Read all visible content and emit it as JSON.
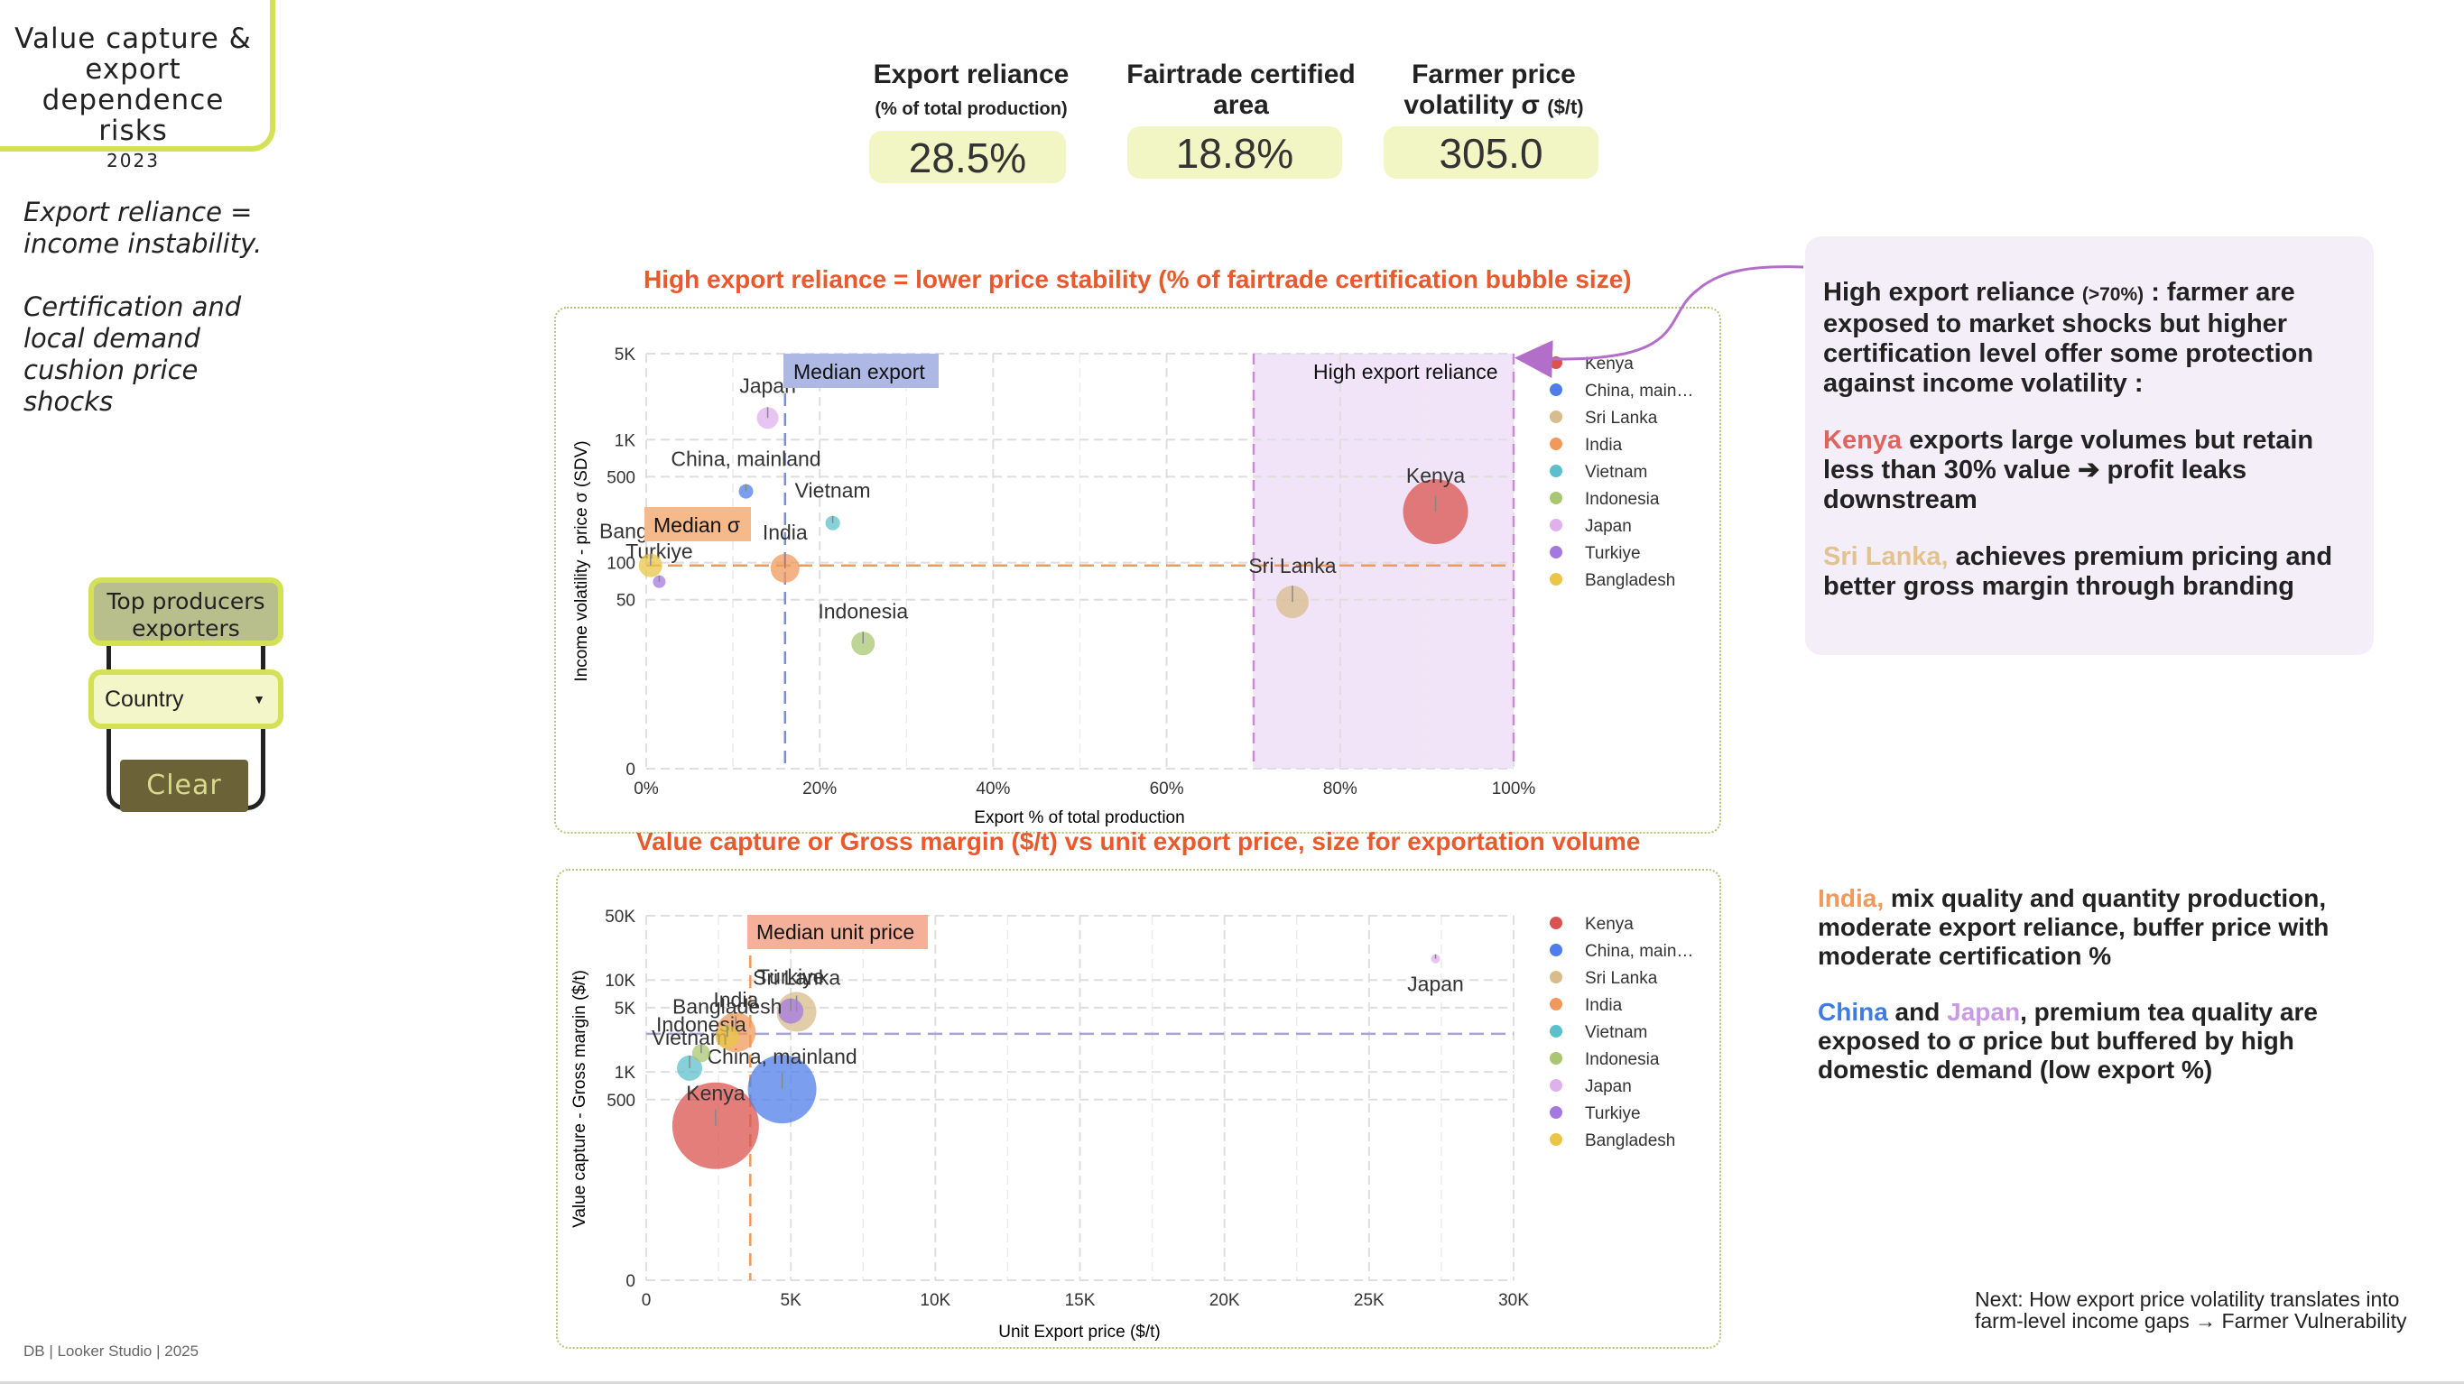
{
  "sidebar": {
    "title": "Value capture & export dependence risks",
    "year": "2023",
    "tagline1": "Export reliance = income instability.",
    "tagline2": "Certification and local demand cushion price shocks",
    "control_label": "Top producers exporters",
    "select_value": "Country",
    "clear_label": "Clear"
  },
  "kpis": [
    {
      "label": "Export reliance",
      "sublabel": "(% of total production)",
      "value": "28.5%"
    },
    {
      "label": "Fairtrade certified area",
      "value": "18.8%"
    },
    {
      "label": "Farmer price volatility σ",
      "unit": "($/t)",
      "value": "305.0"
    }
  ],
  "notes": {
    "box1_intro": "High export reliance",
    "box1_intro_small": "(>70%)",
    "box1_intro_rest": " : farmer are exposed to market shocks but higher certification level offer some protection against income volatility :",
    "kenya_name": "Kenya",
    "kenya_text": " exports large volumes but retain less than 30% value ➔ profit leaks downstream",
    "srilanka_name": "Sri Lanka,",
    "srilanka_text": " achieves premium pricing and better gross margin through branding",
    "india_name": "India,",
    "india_text": " mix quality and quantity production, moderate export reliance, buffer price with moderate certification %",
    "china_name": "China",
    "and": " and ",
    "japan_name": "Japan",
    "china_japan_text": ", premium tea quality are exposed to σ price but buffered by high domestic demand (low export %)",
    "next_line1": "Next: How export price volatility translates into",
    "next_line2": "farm-level income gaps → Farmer Vulnerability",
    "footer": "DB  |  Looker Studio  |  2025"
  },
  "colors": {
    "Kenya": "#d9534f",
    "China, mainland": "#4f7ee8",
    "Sri Lanka": "#d8bc8c",
    "India": "#f0995c",
    "Vietnam": "#5cc0cc",
    "Indonesia": "#a9c773",
    "Japan": "#dfb0ec",
    "Turkiye": "#a478e0",
    "Bangladesh": "#eac548",
    "title_orange": "#e8592d",
    "accent_lime": "#d4e157",
    "srilanka_text": "#e2c28f",
    "india_text": "#f0995c",
    "china_text": "#3f7be0",
    "japan_text": "#c99be2"
  },
  "chart_data": [
    {
      "type": "scatter",
      "title": "High export reliance = lower price stability (% of fairtrade certification bubble size)",
      "xlabel": "Export % of total production",
      "ylabel": "Income volatility - price σ (SDV)",
      "xlim": [
        0,
        100
      ],
      "ylim": [
        0,
        5000
      ],
      "y_scale": "log",
      "x_ticks": [
        "0%",
        "20%",
        "40%",
        "60%",
        "80%",
        "100%"
      ],
      "y_ticks": [
        "0",
        "50",
        "100",
        "500",
        "1K",
        "5K"
      ],
      "grid": true,
      "legend_position": "right",
      "legend": [
        "Kenya",
        "China, main…",
        "Sri Lanka",
        "India",
        "Vietnam",
        "Indonesia",
        "Japan",
        "Turkiye",
        "Bangladesh"
      ],
      "reference_lines": [
        {
          "label": "Median export",
          "axis": "x",
          "value": 16
        },
        {
          "label": "Median σ",
          "axis": "y",
          "value": 95
        }
      ],
      "band": {
        "label": "High export reliance",
        "from": 70,
        "to": 100
      },
      "points": [
        {
          "name": "Kenya",
          "label": "Kenya",
          "x": 91,
          "y": 260,
          "size": 36
        },
        {
          "name": "China, mainland",
          "label": "China, mainland",
          "x": 11.5,
          "y": 380,
          "size": 8
        },
        {
          "name": "Sri Lanka",
          "label": "Sri Lanka",
          "x": 74.5,
          "y": 48,
          "size": 18
        },
        {
          "name": "India",
          "label": "India",
          "x": 16,
          "y": 90,
          "size": 16
        },
        {
          "name": "Vietnam",
          "label": "Vietnam",
          "x": 21.5,
          "y": 210,
          "size": 8
        },
        {
          "name": "Indonesia",
          "label": "Indonesia",
          "x": 25,
          "y": 22,
          "size": 13
        },
        {
          "name": "Japan",
          "label": "Japan",
          "x": 14,
          "y": 1500,
          "size": 12
        },
        {
          "name": "Turkiye",
          "label": "Turkiye",
          "x": 1.5,
          "y": 70,
          "size": 7
        },
        {
          "name": "Bangladesh",
          "label": "Bangladesh",
          "x": 0.5,
          "y": 95,
          "size": 13
        }
      ]
    },
    {
      "type": "scatter",
      "title": "Value capture or Gross margin ($/t) vs unit export price, size for exportation volume",
      "xlabel": "Unit Export price ($/t)",
      "ylabel": "Value capture - Gross margin ($/t)",
      "xlim": [
        0,
        30000
      ],
      "ylim": [
        0,
        50000
      ],
      "y_scale": "log",
      "x_ticks": [
        "0",
        "5K",
        "10K",
        "15K",
        "20K",
        "25K",
        "30K"
      ],
      "y_ticks": [
        "0",
        "500",
        "1K",
        "5K",
        "10K",
        "50K"
      ],
      "grid": true,
      "legend_position": "right",
      "legend": [
        "Kenya",
        "China, main…",
        "Sri Lanka",
        "India",
        "Vietnam",
        "Indonesia",
        "Japan",
        "Turkiye",
        "Bangladesh"
      ],
      "reference_lines": [
        {
          "label": "Median unit price",
          "axis": "x",
          "value": 3600
        },
        {
          "axis": "y",
          "value": 2600
        }
      ],
      "points": [
        {
          "name": "Kenya",
          "label": "Kenya",
          "x": 2400,
          "y": 260,
          "size": 48
        },
        {
          "name": "China, mainland",
          "label": "China, mainland",
          "x": 4700,
          "y": 650,
          "size": 38
        },
        {
          "name": "Sri Lanka",
          "label": "Sri Lanka",
          "x": 5200,
          "y": 4500,
          "size": 22
        },
        {
          "name": "India",
          "label": "India",
          "x": 3100,
          "y": 2700,
          "size": 22
        },
        {
          "name": "Vietnam",
          "label": "Vietnam",
          "x": 1500,
          "y": 1100,
          "size": 14
        },
        {
          "name": "Indonesia",
          "label": "Indonesia",
          "x": 1900,
          "y": 1600,
          "size": 10
        },
        {
          "name": "Japan",
          "label": "Japan",
          "x": 27300,
          "y": 17000,
          "size": 5
        },
        {
          "name": "Turkiye",
          "label": "Turkiye",
          "x": 5000,
          "y": 4600,
          "size": 14
        },
        {
          "name": "Bangladesh",
          "label": "Bangladesh",
          "x": 2800,
          "y": 2400,
          "size": 13
        }
      ]
    }
  ]
}
